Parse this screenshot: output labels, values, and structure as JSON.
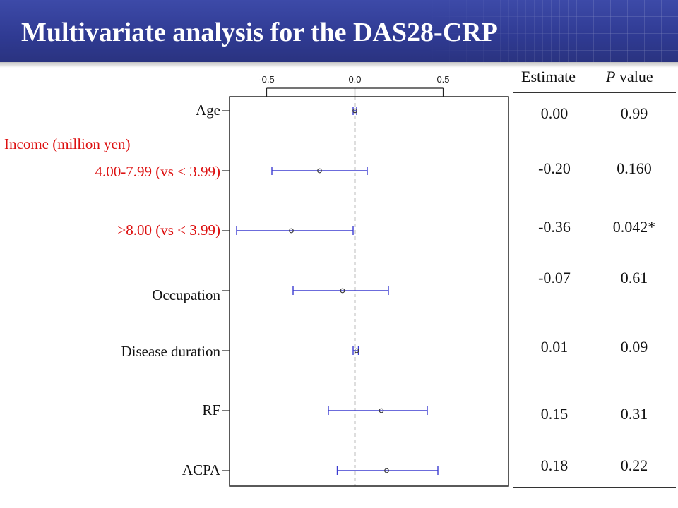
{
  "slide": {
    "title": "Multivariate analysis for the DAS28-CRP",
    "group_label": "Income (million yen)"
  },
  "table": {
    "header_estimate": "Estimate",
    "header_p_italic": "P",
    "header_p_rest": "value",
    "rows": [
      {
        "estimate": "0.00",
        "p": "0.99"
      },
      {
        "estimate": "-0.20",
        "p": "0.160"
      },
      {
        "estimate": "-0.36",
        "p": "0.042*"
      },
      {
        "estimate": "-0.07",
        "p": "0.61"
      },
      {
        "estimate": "0.01",
        "p": "0.09"
      },
      {
        "estimate": "0.15",
        "p": "0.31"
      },
      {
        "estimate": "0.18",
        "p": "0.22"
      }
    ]
  },
  "chart_data": {
    "type": "scatter",
    "subtype": "forest-plot",
    "title": "Multivariate analysis for the DAS28-CRP",
    "xlim": [
      -0.71,
      0.87
    ],
    "xticks": [
      -0.5,
      0.0,
      0.5
    ],
    "xtick_labels": [
      "-0.5",
      "0.0",
      "0.5"
    ],
    "reference_line": 0.0,
    "categories": [
      "Age",
      "4.00-7.99 (vs < 3.99)",
      ">8.00 (vs < 3.99)",
      "Occupation",
      "Disease duration",
      "RF",
      "ACPA"
    ],
    "category_colors": [
      "#111111",
      "#dd1111",
      "#dd1111",
      "#111111",
      "#111111",
      "#111111",
      "#111111"
    ],
    "series": [
      {
        "name": "Estimate",
        "values": [
          0.0,
          -0.2,
          -0.36,
          -0.07,
          0.01,
          0.15,
          0.18
        ]
      },
      {
        "name": "CI lower",
        "values": [
          -0.01,
          -0.47,
          -0.67,
          -0.35,
          -0.01,
          -0.15,
          -0.1
        ]
      },
      {
        "name": "CI upper",
        "values": [
          0.01,
          0.07,
          -0.01,
          0.19,
          0.02,
          0.41,
          0.47
        ]
      }
    ],
    "marker_color": "#3b3bd1"
  }
}
